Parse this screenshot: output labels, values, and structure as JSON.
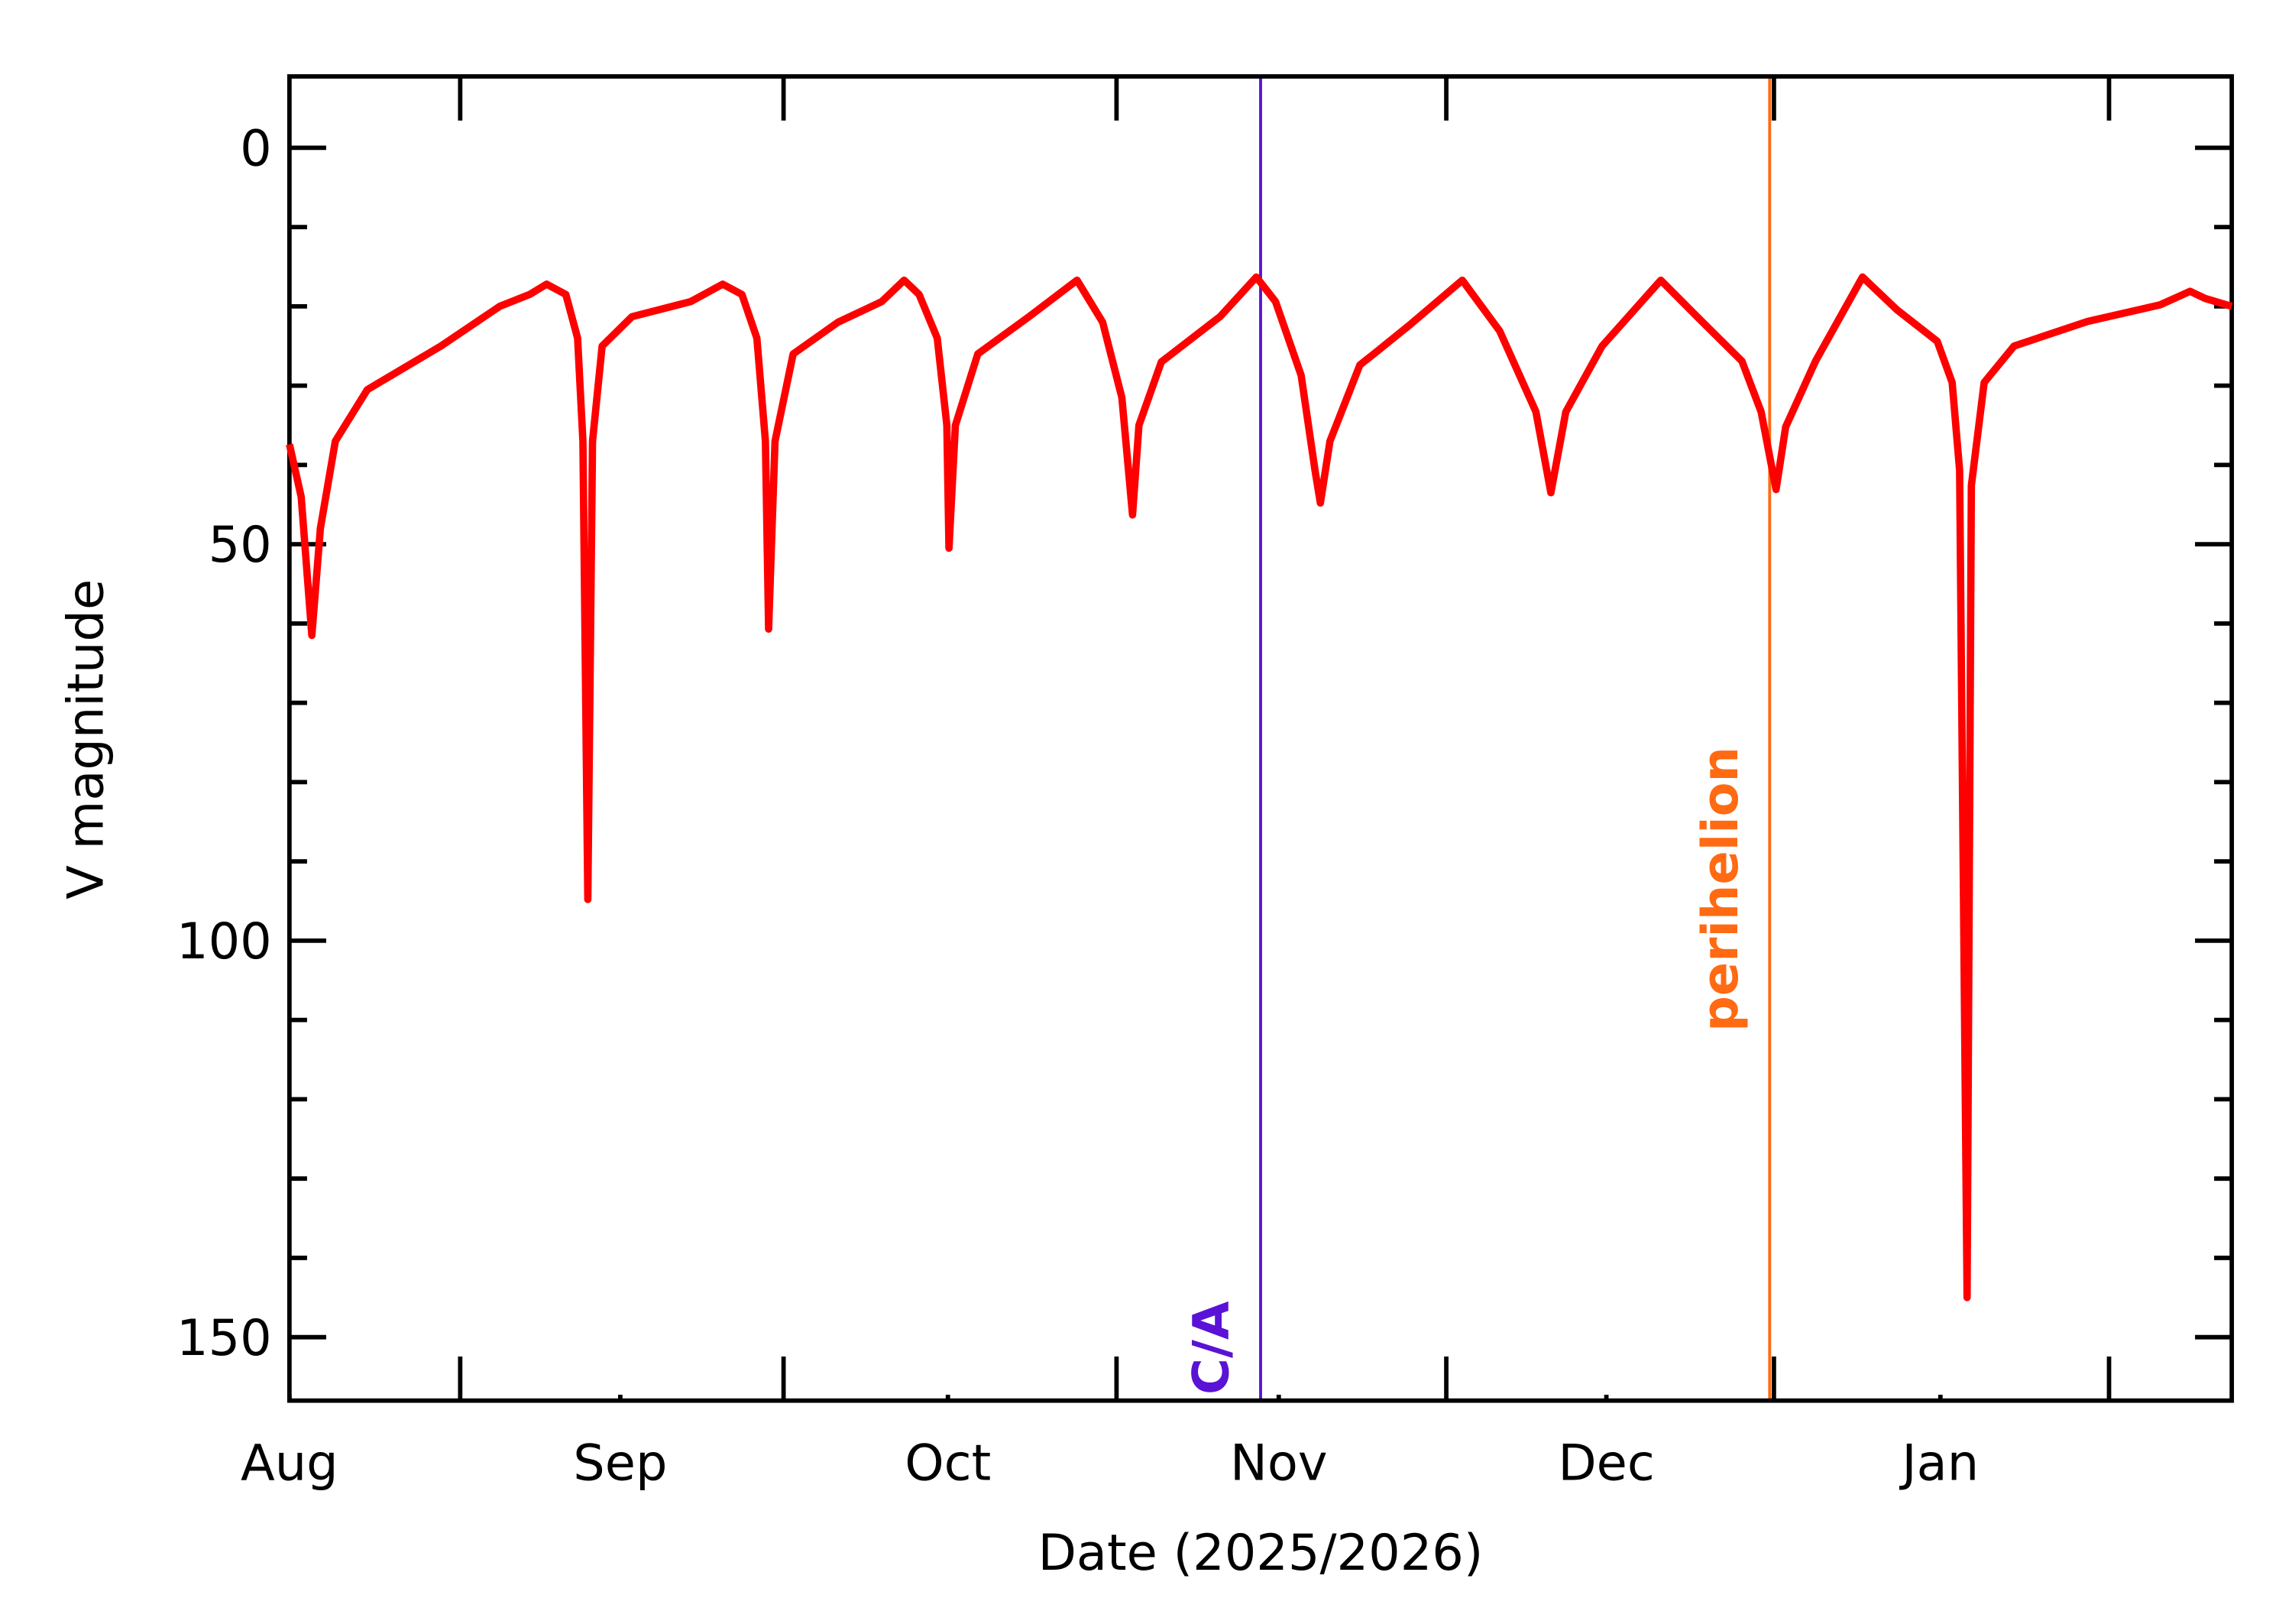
{
  "chart_data": {
    "type": "line",
    "x_label": "Date (2025/2026)",
    "y_label": "V magnitude",
    "xlim": [
      0,
      182
    ],
    "xticks": [
      {
        "value": 0,
        "label": "Aug"
      },
      {
        "value": 31,
        "label": "Sep"
      },
      {
        "value": 61.7,
        "label": "Oct"
      },
      {
        "value": 92.7,
        "label": "Nov"
      },
      {
        "value": 123.4,
        "label": "Dec"
      },
      {
        "value": 154.7,
        "label": "Jan"
      }
    ],
    "xminorticks": [
      16,
      46.3,
      77.5,
      108.4,
      139.1,
      170.5
    ],
    "ylim": [
      -9,
      158
    ],
    "y_inverted": true,
    "yticks": [
      0,
      50,
      100,
      150
    ],
    "yminorticks": [
      10,
      20,
      30,
      40,
      60,
      70,
      80,
      90,
      110,
      120,
      130,
      140
    ],
    "annotations": [
      {
        "x": 91,
        "label": "C/A",
        "color": "#5a12d6"
      },
      {
        "x": 138.7,
        "label": "perihelion",
        "color": "#ff6a13"
      }
    ],
    "series": [
      {
        "color": "#ff0000",
        "x": [
          0,
          1.1,
          2.1,
          2.9,
          4.3,
          7.3,
          14.2,
          19.7,
          22.5,
          24.1,
          25.9,
          27,
          27.5,
          27.96,
          28.4,
          29.3,
          32.1,
          37.6,
          40.6,
          42.4,
          43.8,
          44.6,
          44.9,
          45.5,
          47.2,
          51.4,
          55.5,
          57.6,
          59,
          60.7,
          61.6,
          61.8,
          62.4,
          64.5,
          69.3,
          73.8,
          76.2,
          78,
          79,
          79.6,
          81.7,
          87.2,
          90.6,
          92.4,
          94.8,
          96.1,
          96.6,
          97.5,
          100.3,
          101.7,
          105.1,
          109.9,
          113.4,
          116.8,
          118.2,
          119.6,
          123,
          128.5,
          131.9,
          136.1,
          137.9,
          139.3,
          140.2,
          143,
          147.4,
          150.6,
          154.4,
          155.8,
          156.5,
          157.2,
          157.6,
          158.8,
          161.6,
          168.5,
          175.3,
          178.1,
          179.5,
          182
        ],
        "values": [
          37.4,
          44,
          61.5,
          48,
          37,
          30.5,
          25,
          20,
          18.5,
          17.2,
          18.5,
          24,
          37,
          94.8,
          37,
          25,
          21.3,
          19.4,
          17.2,
          18.5,
          24,
          37,
          60.7,
          37,
          26,
          22,
          19.4,
          16.7,
          18.5,
          24,
          35,
          50.5,
          35,
          26,
          21.3,
          16.7,
          22,
          31.5,
          46.3,
          35,
          27,
          21.3,
          16.3,
          19.4,
          28.7,
          40.7,
          44.8,
          37,
          27.4,
          25.9,
          22.2,
          16.7,
          23.1,
          33.3,
          43.5,
          33.3,
          25,
          16.7,
          21.3,
          26.9,
          33.3,
          43.1,
          35.2,
          26.9,
          16.3,
          20.4,
          24.4,
          29.6,
          40.7,
          145,
          42.6,
          29.6,
          25,
          21.9,
          19.8,
          18.1,
          19,
          20
        ]
      }
    ]
  }
}
